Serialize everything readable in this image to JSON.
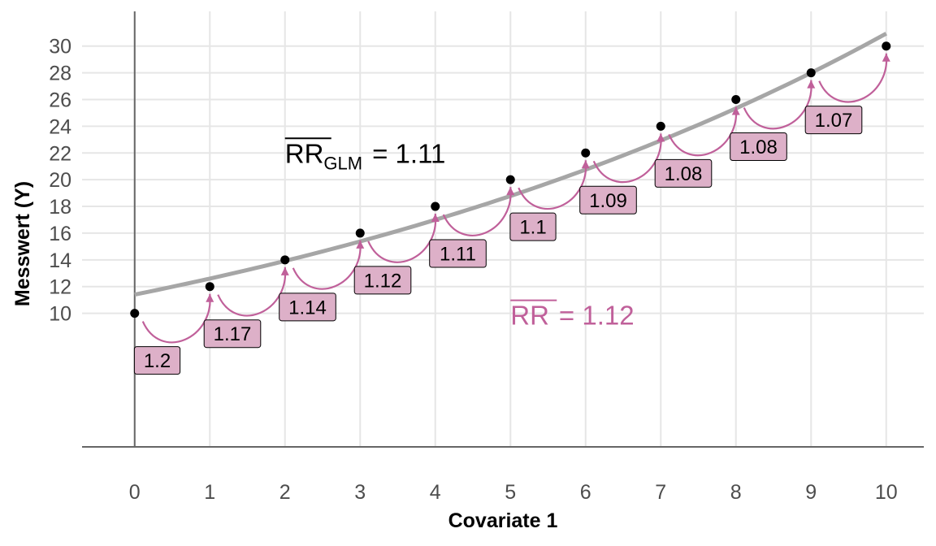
{
  "chart_data": {
    "type": "scatter",
    "xlabel": "Covariate 1",
    "ylabel": "Messwert (Y)",
    "xlim": [
      -0.7,
      10.5
    ],
    "ylim": [
      0,
      32.6
    ],
    "x_ticks": [
      "0",
      "1",
      "2",
      "3",
      "4",
      "5",
      "6",
      "7",
      "8",
      "9",
      "10"
    ],
    "y_ticks": [
      "10",
      "12",
      "14",
      "16",
      "18",
      "20",
      "22",
      "24",
      "26",
      "28",
      "30"
    ],
    "points": {
      "x": [
        0,
        1,
        2,
        3,
        4,
        5,
        6,
        7,
        8,
        9,
        10
      ],
      "y": [
        10,
        12,
        14,
        16,
        18,
        20,
        22,
        24,
        26,
        28,
        30
      ]
    },
    "fit_curve": {
      "type": "exponential",
      "intercept": 11.4,
      "rate": 1.105,
      "x_range": [
        0,
        10
      ],
      "color": "#a6a6a6"
    },
    "ratio_labels": [
      "1.2",
      "1.17",
      "1.14",
      "1.12",
      "1.11",
      "1.1",
      "1.09",
      "1.08",
      "1.08",
      "1.07"
    ],
    "annotations": {
      "glm": {
        "main": "RR",
        "sub": "GLM",
        "value": "= 1.11",
        "color": "#000000",
        "x": 2.0,
        "y": 22
      },
      "mean": {
        "main": "RR",
        "value": "= 1.12",
        "color": "#c0609a",
        "x": 5.0,
        "y": 10
      }
    },
    "colors": {
      "accent": "#c0609a",
      "label_fill": "#ddb0c8",
      "points": "#000000",
      "grid": "#e6e6e6",
      "axis": "#666666"
    },
    "grid": true
  }
}
